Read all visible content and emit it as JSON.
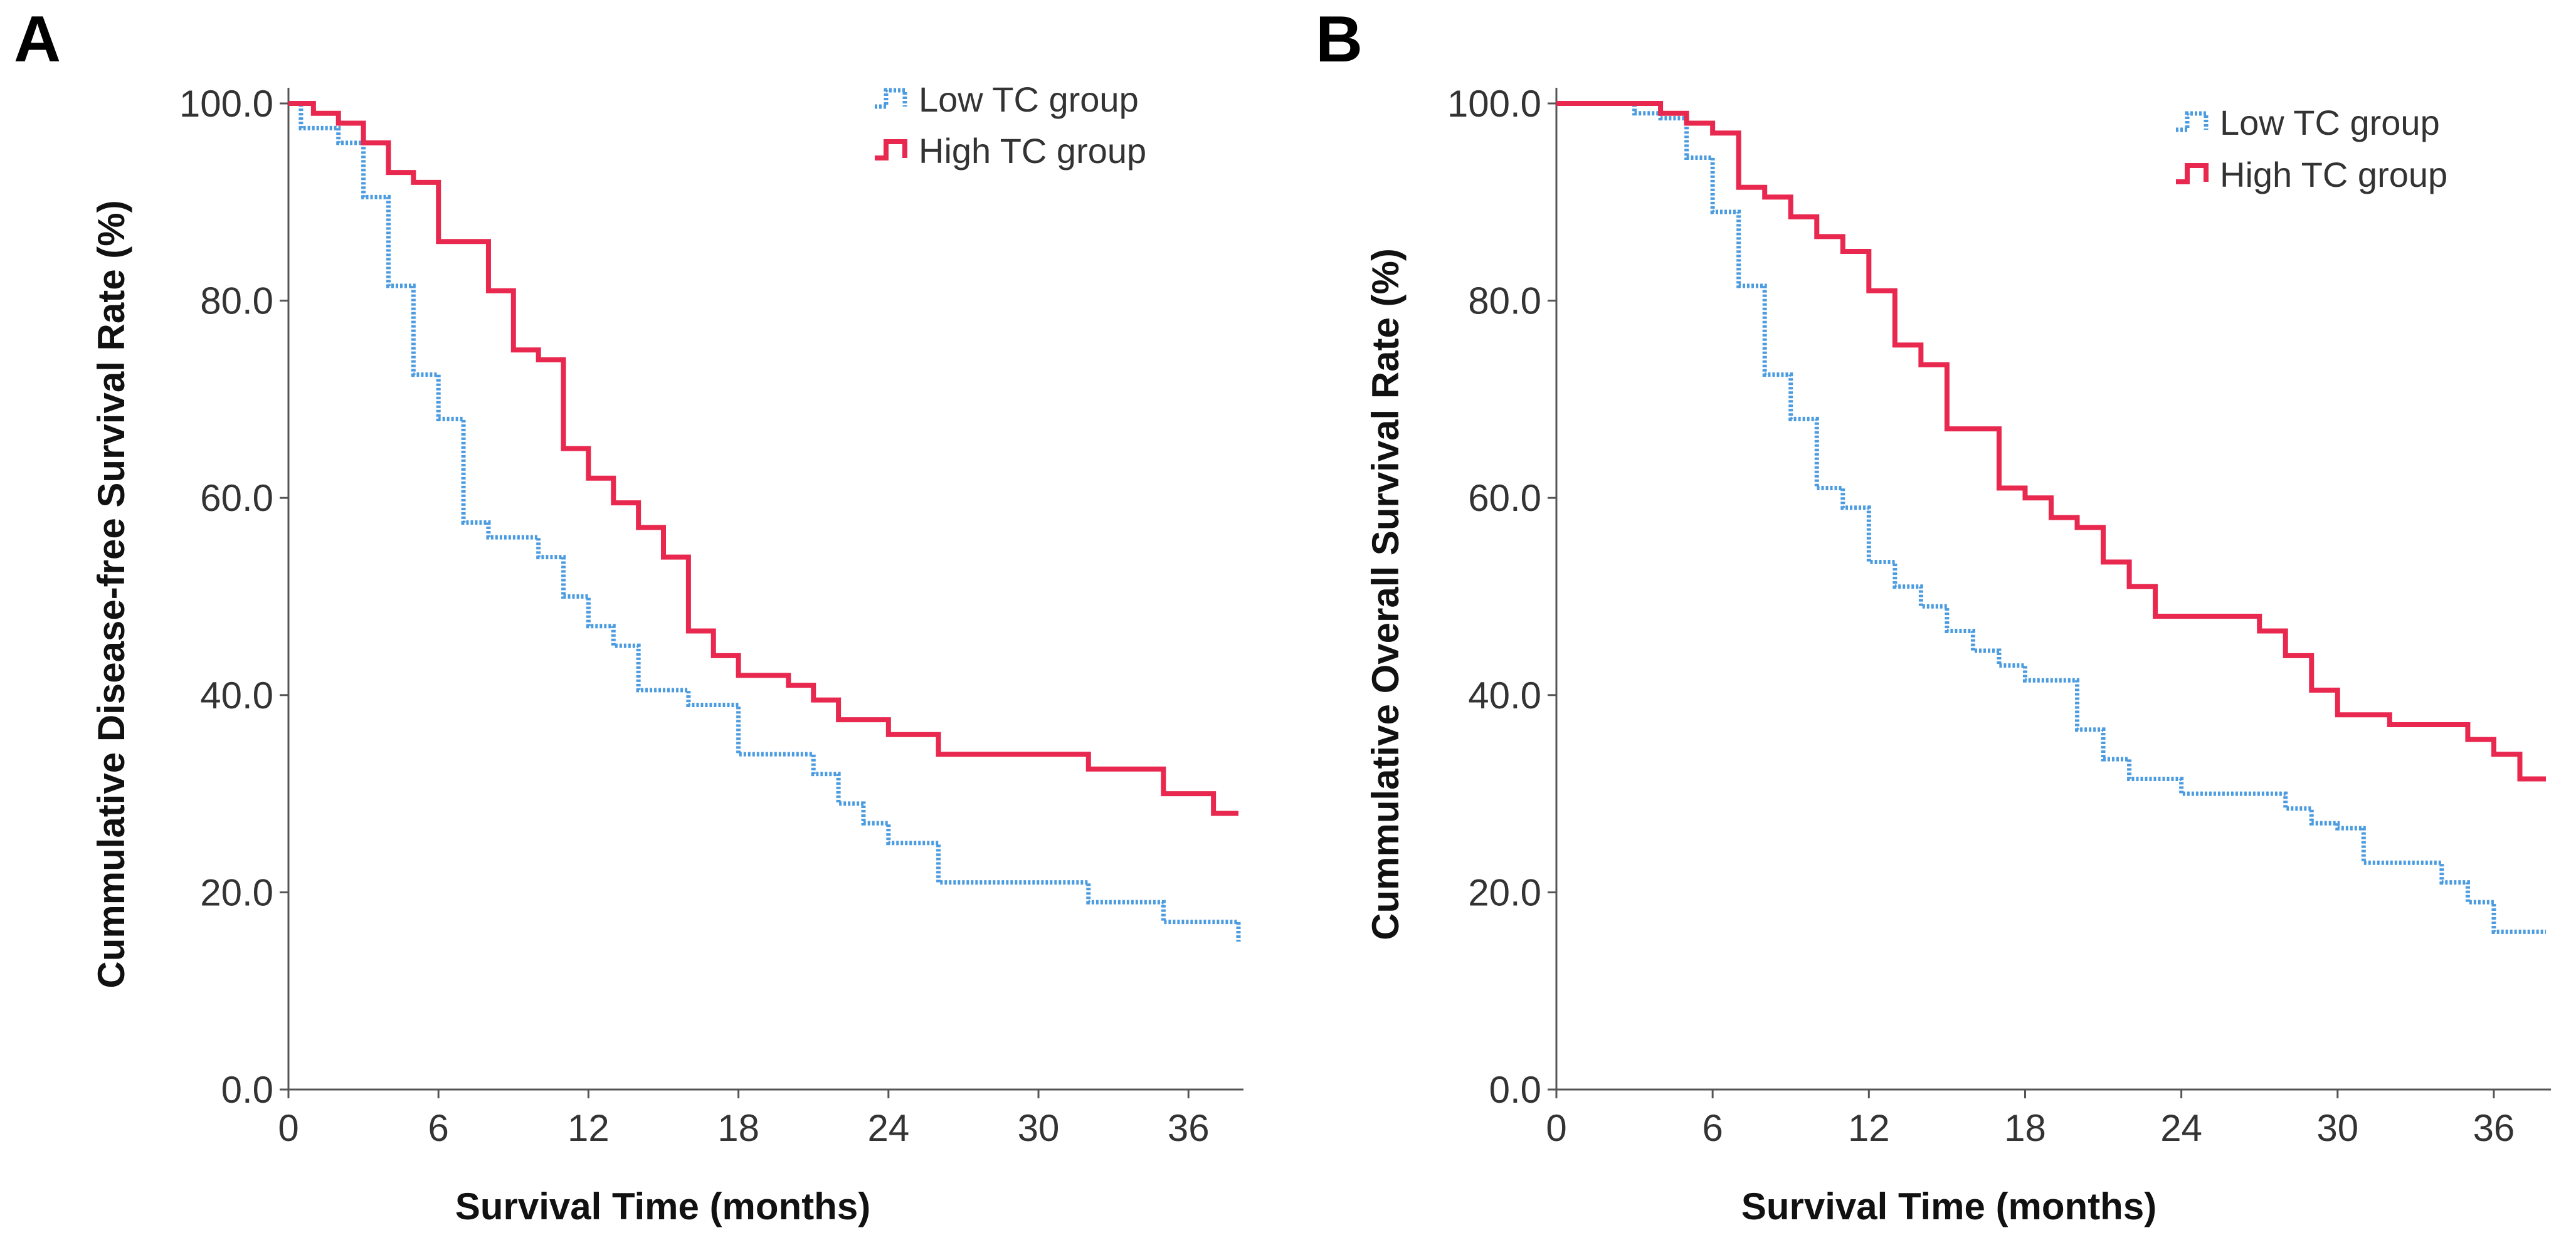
{
  "chart_data": [
    {
      "type": "line",
      "panel_label": "A",
      "xlabel": "Survival Time (months)",
      "ylabel": "Cummulative Disease-free Survival Rate (%)",
      "xlim": [
        0,
        38
      ],
      "ylim": [
        0,
        100
      ],
      "xticks": [
        0,
        6,
        12,
        18,
        24,
        30,
        36
      ],
      "yticks": [
        0,
        20,
        40,
        60,
        80,
        100
      ],
      "ytick_labels": [
        "0.0",
        "20.0",
        "40.0",
        "60.0",
        "80.0",
        "100.0"
      ],
      "legend": {
        "placement": "top-right",
        "entries": [
          "Low TC group",
          "High TC group"
        ]
      },
      "series": [
        {
          "name": "Low TC group",
          "color": "#4a9be0",
          "style": "dotted",
          "x": [
            0,
            0.5,
            2,
            3,
            4,
            5,
            6,
            7,
            8,
            10,
            11,
            12,
            13,
            14,
            16,
            18,
            21,
            22,
            23,
            24,
            26,
            32,
            35,
            38
          ],
          "y": [
            100,
            97.5,
            96,
            90.5,
            81.5,
            72.5,
            68,
            57.5,
            56,
            54,
            50,
            47,
            45,
            40.5,
            39,
            34,
            32,
            29,
            27,
            25,
            21,
            19,
            17,
            15
          ]
        },
        {
          "name": "High TC group",
          "color": "#e8284e",
          "style": "solid",
          "x": [
            0,
            1,
            2,
            3,
            4,
            5,
            6,
            8,
            9,
            10,
            11,
            12,
            13,
            14,
            15,
            16,
            17,
            18,
            20,
            21,
            22,
            24,
            26,
            32,
            35,
            37,
            38
          ],
          "y": [
            100,
            99,
            98,
            96,
            93,
            92,
            86,
            81,
            75,
            74,
            65,
            62,
            59.5,
            57,
            54,
            46.5,
            44,
            42,
            41,
            39.5,
            37.5,
            36,
            34,
            32.5,
            30,
            28,
            28
          ]
        }
      ]
    },
    {
      "type": "line",
      "panel_label": "B",
      "xlabel": "Survival Time (months)",
      "ylabel": "Cummulative Overall Survival Rate (%)",
      "xlim": [
        0,
        38
      ],
      "ylim": [
        0,
        100
      ],
      "xticks": [
        0,
        6,
        12,
        18,
        24,
        30,
        36
      ],
      "yticks": [
        0,
        20,
        40,
        60,
        80,
        100
      ],
      "ytick_labels": [
        "0.0",
        "20.0",
        "40.0",
        "60.0",
        "80.0",
        "100.0"
      ],
      "legend": {
        "placement": "top-right",
        "entries": [
          "Low TC group",
          "High TC group"
        ]
      },
      "series": [
        {
          "name": "Low TC group",
          "color": "#4a9be0",
          "style": "dotted",
          "x": [
            0,
            3,
            4,
            5,
            6,
            7,
            8,
            9,
            10,
            11,
            12,
            13,
            14,
            15,
            16,
            17,
            18,
            20,
            21,
            22,
            24,
            28,
            29,
            30,
            31,
            34,
            35,
            36,
            38
          ],
          "y": [
            100,
            99,
            98.5,
            94.5,
            89,
            81.5,
            72.5,
            68,
            61,
            59,
            53.5,
            51,
            49,
            46.5,
            44.5,
            43,
            41.5,
            36.5,
            33.5,
            31.5,
            30,
            28.5,
            27,
            26.5,
            23,
            21,
            19,
            16,
            16
          ]
        },
        {
          "name": "High TC group",
          "color": "#e8284e",
          "style": "solid",
          "x": [
            0,
            4,
            5,
            6,
            7,
            8,
            9,
            10,
            11,
            12,
            13,
            14,
            15,
            17,
            18,
            19,
            20,
            21,
            22,
            23,
            24,
            27,
            28,
            29,
            30,
            32,
            35,
            36,
            37,
            38
          ],
          "y": [
            100,
            99,
            98,
            97,
            91.5,
            90.5,
            88.5,
            86.5,
            85,
            81,
            75.5,
            73.5,
            67,
            61,
            60,
            58,
            57,
            53.5,
            51,
            48,
            48,
            46.5,
            44,
            40.5,
            38,
            37,
            35.5,
            34,
            31.5,
            31.5
          ]
        }
      ]
    }
  ]
}
